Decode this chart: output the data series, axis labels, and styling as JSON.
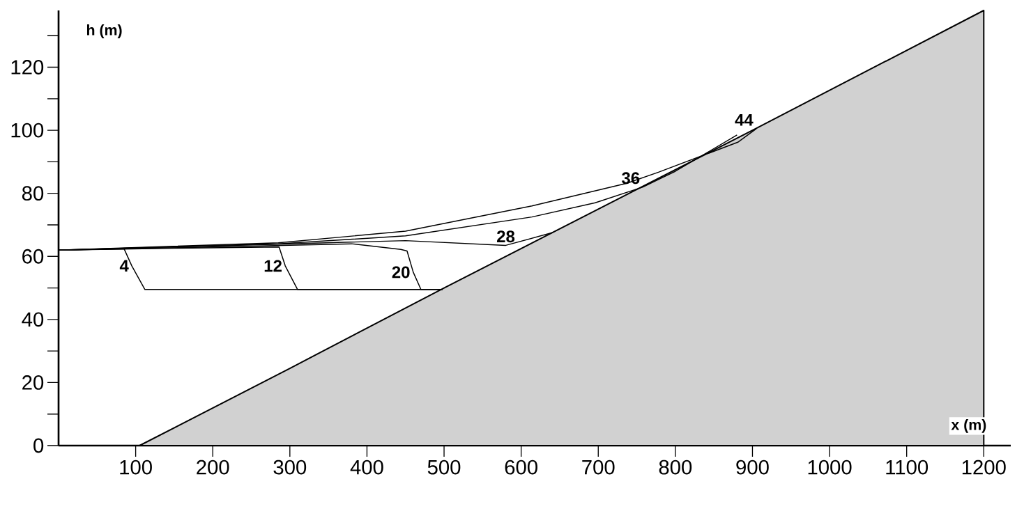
{
  "chart_data": {
    "type": "line",
    "xlabel": "x (m)",
    "ylabel": "h (m)",
    "xlim": [
      0,
      1235
    ],
    "ylim": [
      0,
      138
    ],
    "xticks": [
      100,
      200,
      300,
      400,
      500,
      600,
      700,
      800,
      900,
      1000,
      1100,
      1200
    ],
    "yticks": [
      0,
      {
        "value": 10,
        "label": null
      },
      20,
      {
        "value": 30,
        "label": null
      },
      40,
      {
        "value": 50,
        "label": null
      },
      60,
      {
        "value": 70,
        "label": null
      },
      80,
      {
        "value": 90,
        "label": null
      },
      100,
      {
        "value": 110,
        "label": null
      },
      120,
      {
        "value": 130,
        "label": null
      }
    ],
    "grid": false,
    "marker": "none",
    "line_style": "solid",
    "series": [
      {
        "type": "area",
        "color": "#000000",
        "x": [
          105,
          300,
          500,
          700,
          900,
          1200
        ],
        "values": [
          0,
          24.5,
          50,
          75,
          100,
          138
        ]
      },
      {
        "name": "4",
        "color": "#000000",
        "x": [
          0,
          85,
          95,
          112,
          498
        ],
        "values": [
          62,
          62.4,
          57,
          49.5,
          49.5
        ]
      },
      {
        "name": "12",
        "color": "#000000",
        "x": [
          0,
          150,
          286,
          294,
          310,
          498
        ],
        "values": [
          62,
          62.6,
          63,
          57,
          49.5,
          49.5
        ]
      },
      {
        "name": "20",
        "color": "#000000",
        "x": [
          0,
          200,
          380,
          444,
          452,
          460,
          470,
          498
        ],
        "values": [
          62,
          63,
          64,
          62.2,
          61.7,
          55,
          49.5,
          49.5
        ]
      },
      {
        "name": "28",
        "color": "#000000",
        "x": [
          0,
          300,
          450,
          580,
          640
        ],
        "values": [
          62,
          64,
          65,
          63.5,
          67.5
        ]
      },
      {
        "name": "36",
        "color": "#000000",
        "x": [
          0,
          285,
          450,
          614,
          696,
          758,
          800,
          880
        ],
        "values": [
          62,
          64,
          66.5,
          72.5,
          77,
          82,
          87,
          98.5
        ]
      },
      {
        "name": "44",
        "color": "#000000",
        "x": [
          0,
          285,
          450,
          614,
          737,
          778,
          881,
          905
        ],
        "values": [
          62,
          64.3,
          68,
          76,
          83.2,
          86.7,
          96.2,
          100.5
        ]
      }
    ]
  }
}
